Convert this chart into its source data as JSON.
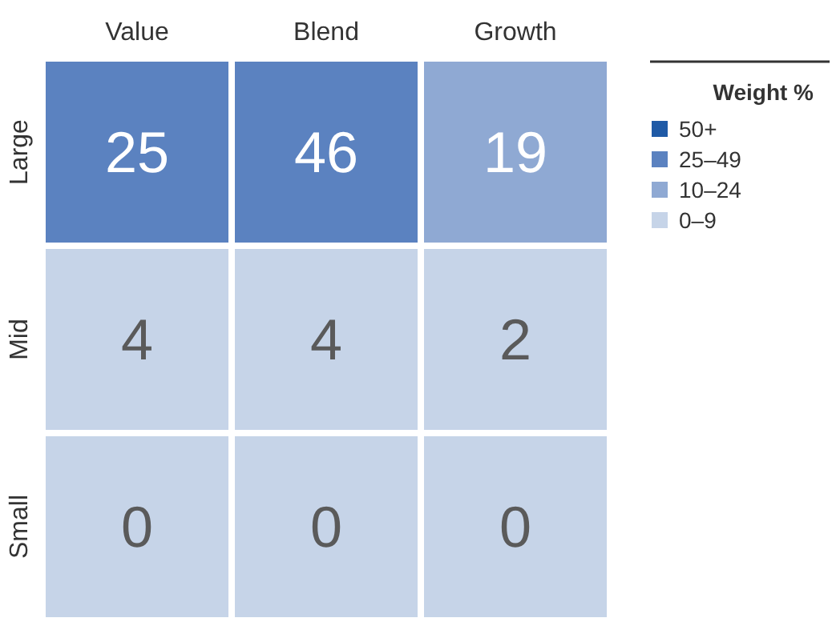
{
  "chart_data": {
    "type": "heatmap",
    "categories": [
      "Value",
      "Blend",
      "Growth"
    ],
    "y_categories": [
      "Large",
      "Mid",
      "Small"
    ],
    "cells": [
      [
        25,
        46,
        19
      ],
      [
        4,
        4,
        2
      ],
      [
        0,
        0,
        0
      ]
    ],
    "colors": [
      [
        "#5b82c0",
        "#5b82c0",
        "#8fa9d3"
      ],
      [
        "#c6d4e8",
        "#c6d4e8",
        "#c6d4e8"
      ],
      [
        "#c6d4e8",
        "#c6d4e8",
        "#c6d4e8"
      ]
    ],
    "data_labels": true,
    "legend": "right",
    "legend_title": "Weight %",
    "series": [
      {
        "name": "50+",
        "color": "#1f5aa6",
        "values": [
          null,
          null,
          null
        ]
      },
      {
        "name": "25–49",
        "color": "#5b82c0",
        "values": [
          null,
          null,
          null
        ]
      },
      {
        "name": "10–24",
        "color": "#8fa9d3",
        "values": [
          null,
          null,
          null
        ]
      },
      {
        "name": "0–9",
        "color": "#c6d4e8",
        "values": [
          null,
          null,
          null
        ]
      }
    ]
  }
}
